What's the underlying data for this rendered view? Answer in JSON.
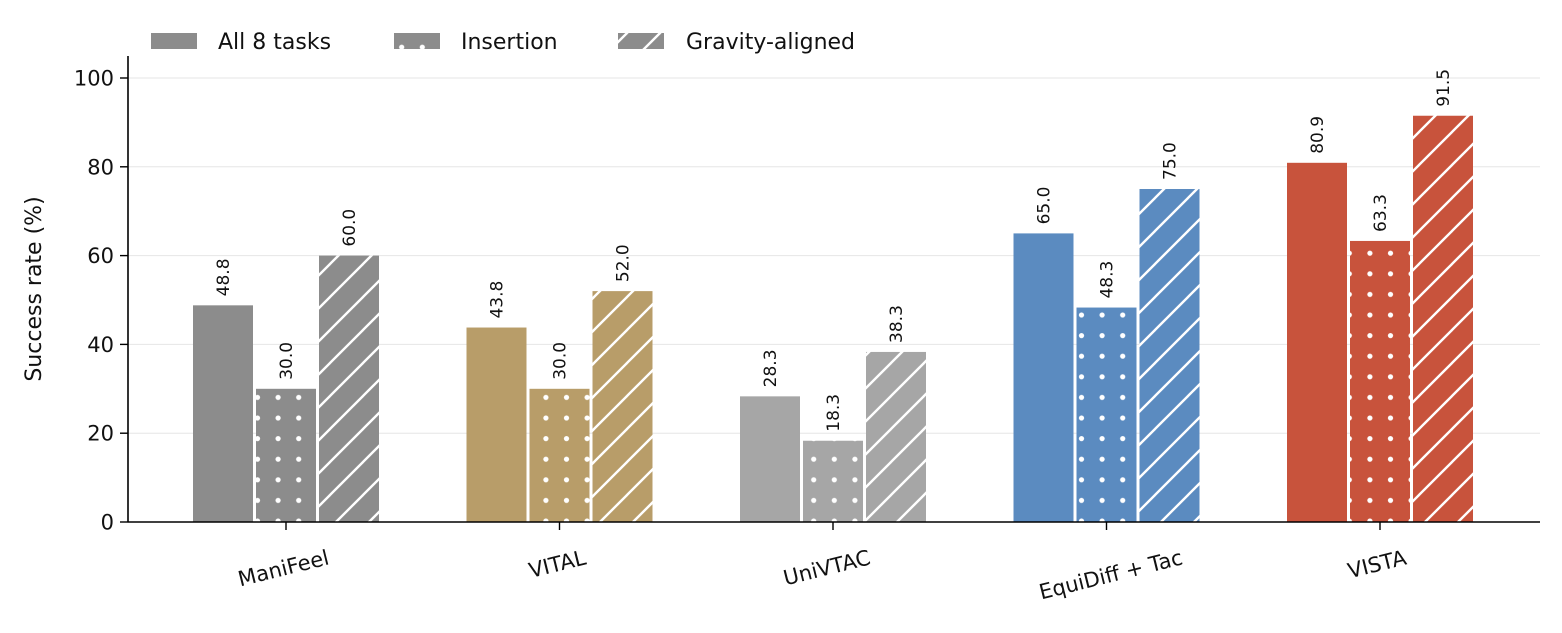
{
  "chart_data": {
    "type": "bar",
    "categories": [
      "ManiFeel",
      "VITAL",
      "UniVTAC",
      "EquiDiff + Tac",
      "VISTA"
    ],
    "category_colors": [
      "#8c8c8c",
      "#b89d69",
      "#a6a6a6",
      "#5b8bc0",
      "#c8533c"
    ],
    "series": [
      {
        "name": "All 8 tasks",
        "pattern": "solid",
        "values": [
          48.8,
          43.8,
          28.3,
          65.0,
          80.9
        ],
        "labels": [
          "48.8",
          "43.8",
          "28.3",
          "65.0",
          "80.9"
        ]
      },
      {
        "name": "Insertion",
        "pattern": "dots",
        "values": [
          30.0,
          30.0,
          18.3,
          48.3,
          63.3
        ],
        "labels": [
          "30.0",
          "30.0",
          "18.3",
          "48.3",
          "63.3"
        ]
      },
      {
        "name": "Gravity-aligned",
        "pattern": "hatch",
        "values": [
          60.0,
          52.0,
          38.3,
          75.0,
          91.5
        ],
        "labels": [
          "60.0",
          "52.0",
          "38.3",
          "75.0",
          "91.5"
        ]
      }
    ],
    "legend_color": "#8c8c8c",
    "ylabel": "Success rate (%)",
    "xlabel": "",
    "ylim": [
      0,
      100
    ],
    "yticks": [
      "0",
      "20",
      "40",
      "60",
      "80",
      "100"
    ],
    "grid": "horizontal",
    "legend_position": "top-left"
  }
}
